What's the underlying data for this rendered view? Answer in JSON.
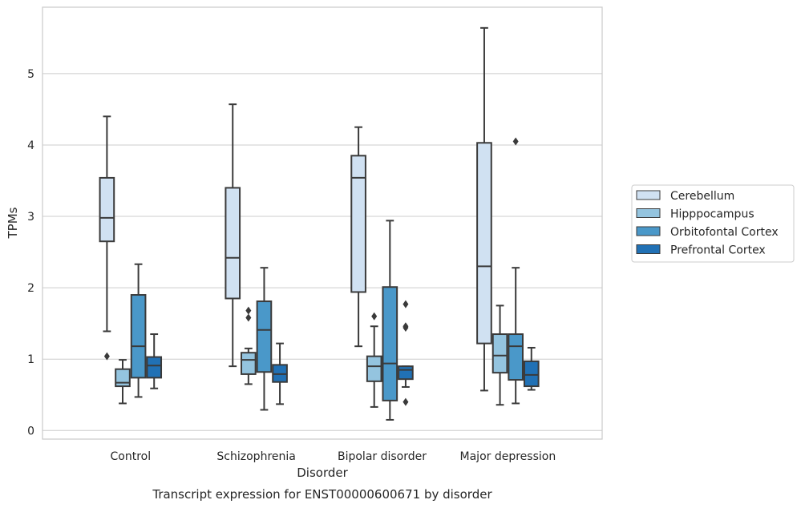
{
  "chart_data": {
    "type": "boxplot",
    "title": "",
    "caption": "Transcript expression for ENST00000600671 by disorder",
    "xlabel": "Disorder",
    "ylabel": "TPMs",
    "ylim": [
      -0.12,
      5.93
    ],
    "yticks": [
      0,
      1,
      2,
      3,
      4,
      5
    ],
    "grid": true,
    "legend_position": "right",
    "categories": [
      "Control",
      "Schizophrenia",
      "Bipolar disorder",
      "Major depression"
    ],
    "series": [
      {
        "name": "Cerebellum",
        "color": "#d0e1f2",
        "boxes": [
          {
            "whisker_low": 1.39,
            "q1": 2.65,
            "median": 2.98,
            "q3": 3.54,
            "whisker_high": 4.4,
            "outliers": [
              1.04
            ]
          },
          {
            "whisker_low": 0.9,
            "q1": 1.85,
            "median": 2.42,
            "q3": 3.4,
            "whisker_high": 4.57,
            "outliers": []
          },
          {
            "whisker_low": 1.18,
            "q1": 1.94,
            "median": 3.54,
            "q3": 3.85,
            "whisker_high": 4.25,
            "outliers": []
          },
          {
            "whisker_low": 0.56,
            "q1": 1.22,
            "median": 2.3,
            "q3": 4.03,
            "whisker_high": 5.64,
            "outliers": []
          }
        ]
      },
      {
        "name": "Hipppocampus",
        "color": "#94c4df",
        "boxes": [
          {
            "whisker_low": 0.38,
            "q1": 0.62,
            "median": 0.67,
            "q3": 0.86,
            "whisker_high": 0.99,
            "outliers": []
          },
          {
            "whisker_low": 0.65,
            "q1": 0.79,
            "median": 0.99,
            "q3": 1.09,
            "whisker_high": 1.15,
            "outliers": [
              1.58,
              1.68
            ]
          },
          {
            "whisker_low": 0.33,
            "q1": 0.69,
            "median": 0.9,
            "q3": 1.04,
            "whisker_high": 1.46,
            "outliers": [
              1.6
            ]
          },
          {
            "whisker_low": 0.36,
            "q1": 0.81,
            "median": 1.05,
            "q3": 1.35,
            "whisker_high": 1.75,
            "outliers": []
          }
        ]
      },
      {
        "name": "Orbitofontal Cortex",
        "color": "#4a98c9",
        "boxes": [
          {
            "whisker_low": 0.47,
            "q1": 0.74,
            "median": 1.18,
            "q3": 1.9,
            "whisker_high": 2.33,
            "outliers": []
          },
          {
            "whisker_low": 0.29,
            "q1": 0.82,
            "median": 1.41,
            "q3": 1.81,
            "whisker_high": 2.28,
            "outliers": []
          },
          {
            "whisker_low": 0.15,
            "q1": 0.42,
            "median": 0.94,
            "q3": 2.01,
            "whisker_high": 2.94,
            "outliers": []
          },
          {
            "whisker_low": 0.38,
            "q1": 0.71,
            "median": 1.18,
            "q3": 1.35,
            "whisker_high": 2.28,
            "outliers": [
              4.05
            ]
          }
        ]
      },
      {
        "name": "Prefrontal Cortex",
        "color": "#2171b5",
        "boxes": [
          {
            "whisker_low": 0.59,
            "q1": 0.74,
            "median": 0.91,
            "q3": 1.03,
            "whisker_high": 1.35,
            "outliers": []
          },
          {
            "whisker_low": 0.37,
            "q1": 0.68,
            "median": 0.79,
            "q3": 0.92,
            "whisker_high": 1.22,
            "outliers": []
          },
          {
            "whisker_low": 0.61,
            "q1": 0.72,
            "median": 0.85,
            "q3": 0.9,
            "whisker_high": 0.9,
            "outliers": [
              0.4,
              1.44,
              1.46,
              1.77
            ]
          },
          {
            "whisker_low": 0.57,
            "q1": 0.62,
            "median": 0.78,
            "q3": 0.97,
            "whisker_high": 1.16,
            "outliers": []
          }
        ]
      }
    ]
  }
}
